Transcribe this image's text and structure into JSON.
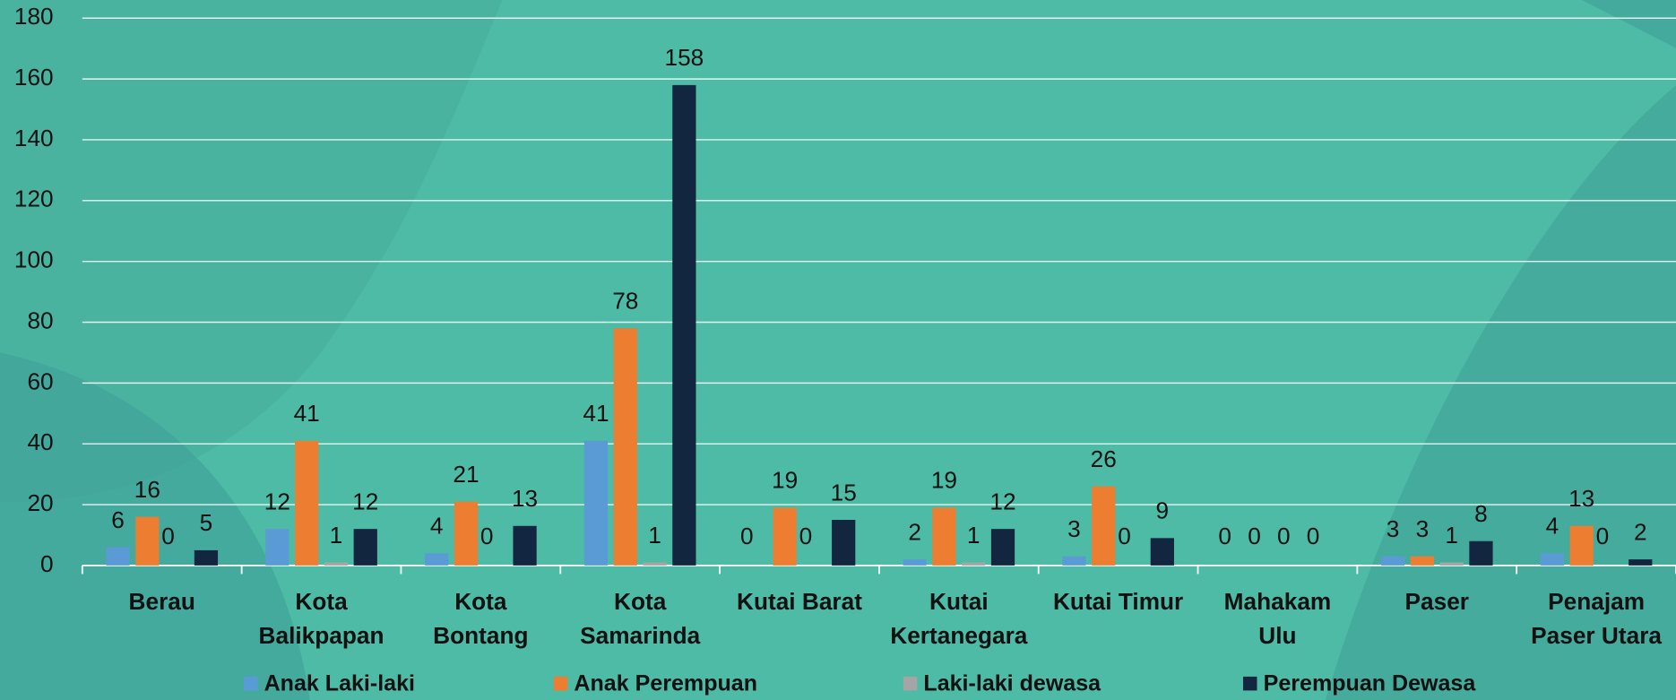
{
  "chart_data": {
    "type": "bar",
    "categories": [
      "Berau",
      "Kota Balikpapan",
      "Kota Bontang",
      "Kota Samarinda",
      "Kutai Barat",
      "Kutai Kertanegara",
      "Kutai Timur",
      "Mahakam Ulu",
      "Paser",
      "Penajam Paser Utara"
    ],
    "series": [
      {
        "name": "Anak Laki-laki",
        "color": "#5b9bd5",
        "values": [
          6,
          12,
          4,
          41,
          0,
          2,
          3,
          0,
          3,
          4
        ]
      },
      {
        "name": "Anak Perempuan",
        "color": "#ed7d31",
        "values": [
          16,
          41,
          21,
          78,
          19,
          19,
          26,
          0,
          3,
          13
        ]
      },
      {
        "name": "Laki-laki dewasa",
        "color": "#a5a5a5",
        "values": [
          0,
          1,
          0,
          1,
          0,
          1,
          0,
          0,
          1,
          0
        ]
      },
      {
        "name": "Perempuan Dewasa",
        "color": "#12263f",
        "values": [
          5,
          12,
          13,
          158,
          15,
          12,
          9,
          0,
          8,
          2
        ]
      }
    ],
    "ylim": [
      0,
      180
    ],
    "yticks": [
      0,
      20,
      40,
      60,
      80,
      100,
      120,
      140,
      160,
      180
    ],
    "grid": true,
    "legend": "bottom"
  }
}
